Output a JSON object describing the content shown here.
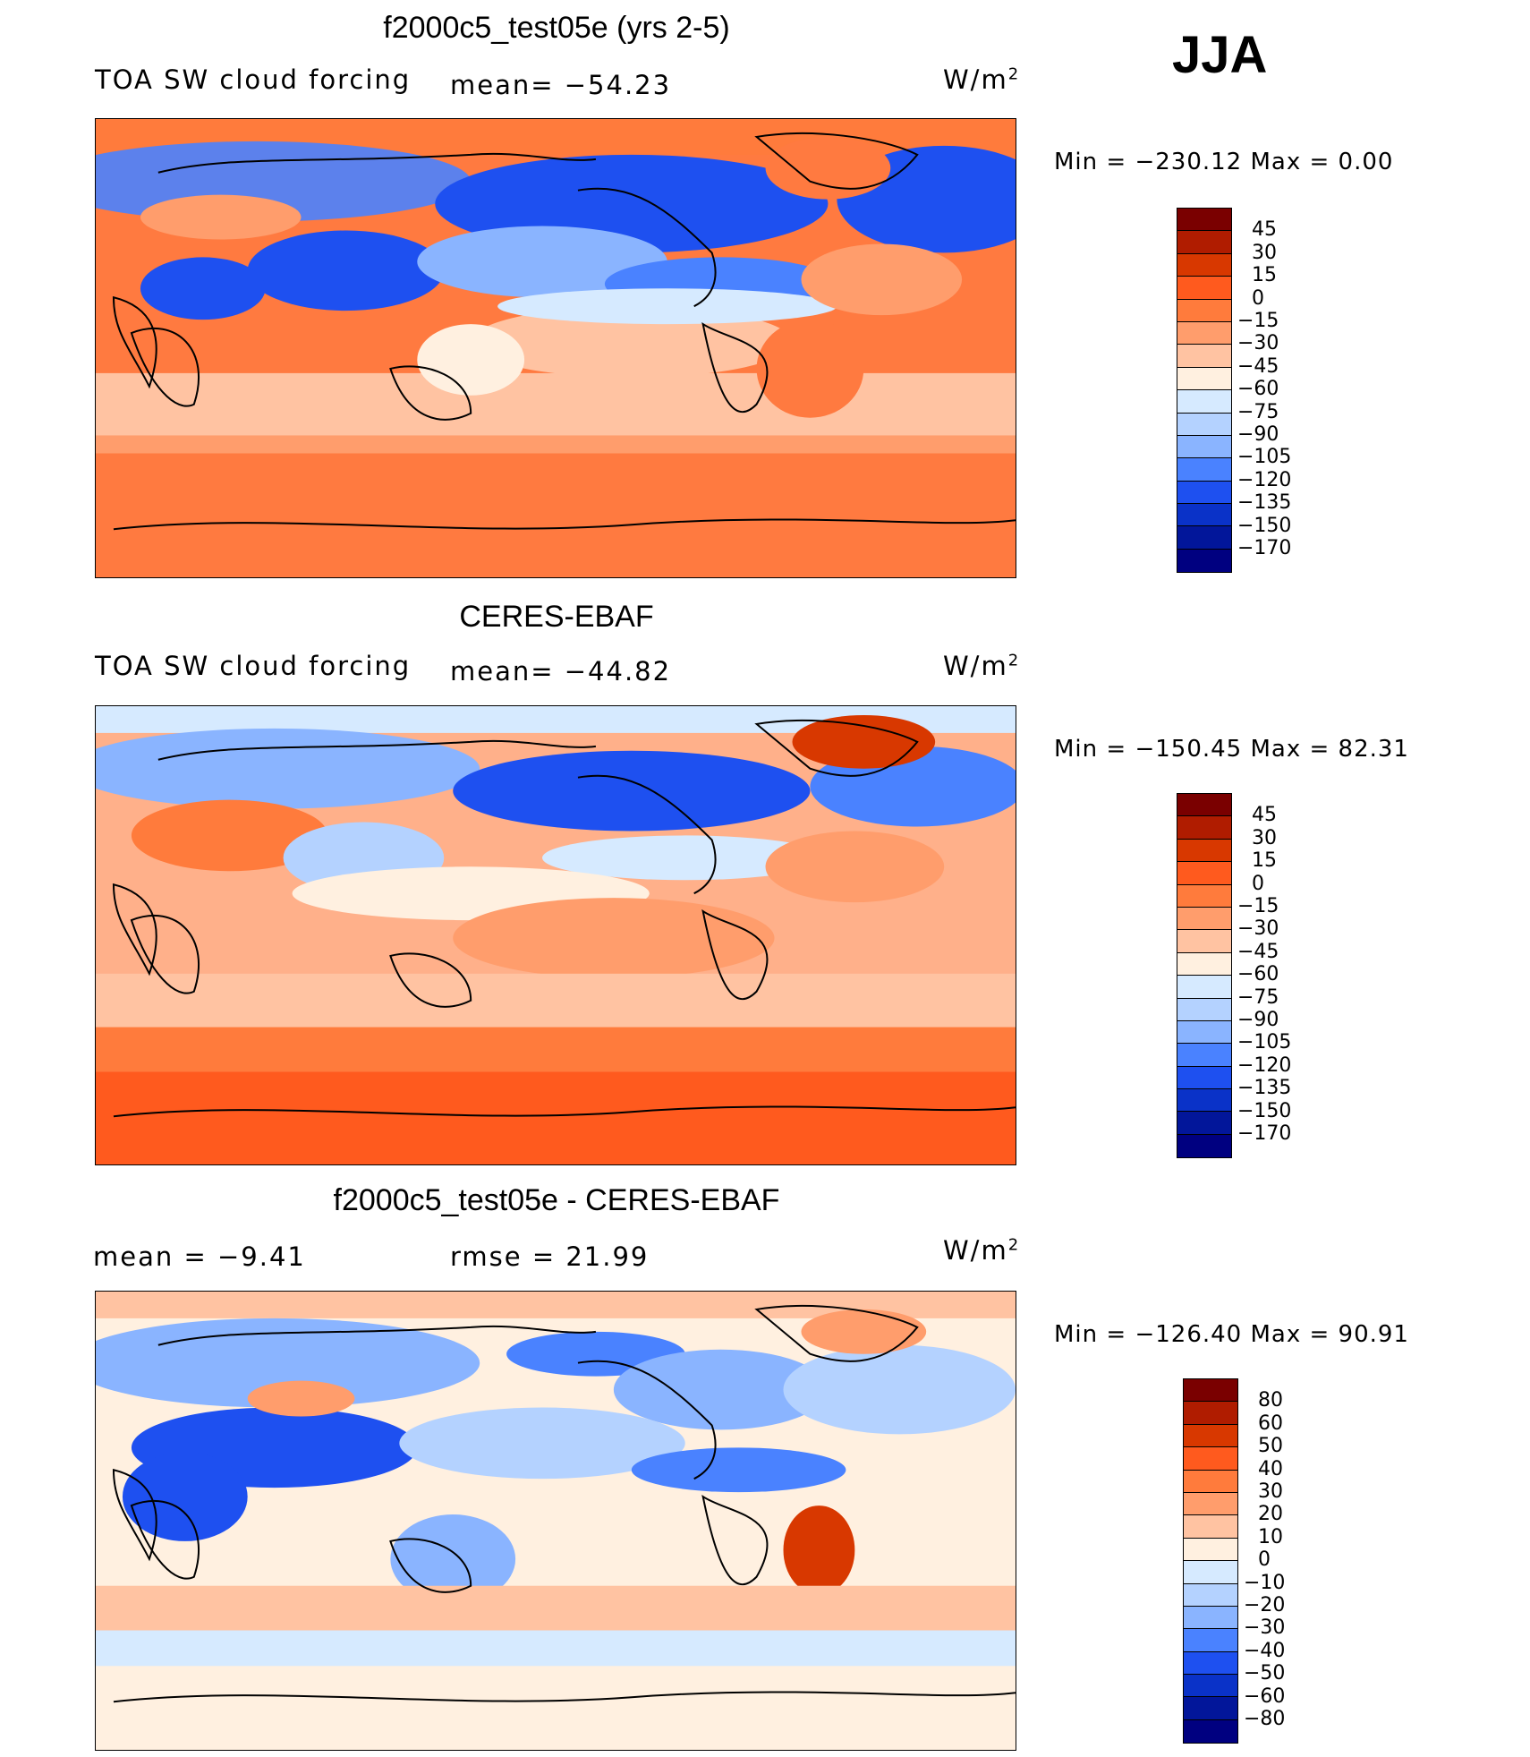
{
  "season": "JJA",
  "panels": [
    {
      "title": "f2000c5_test05e (yrs 2-5)",
      "left_text": "TOA SW cloud forcing",
      "mid_text": "mean= −54.23",
      "units": "W/m",
      "units_sup": "2",
      "min_max": "Min  =  −230.12  Max  =      0.00",
      "colorbar": {
        "labels": [
          "45",
          "30",
          "15",
          "0",
          "−15",
          "−30",
          "−45",
          "−60",
          "−75",
          "−90",
          "−105",
          "−120",
          "−135",
          "−150",
          "−170"
        ],
        "colors": [
          "#7a0000",
          "#b01c00",
          "#d83800",
          "#ff5a1e",
          "#ff7b3c",
          "#ff9d6c",
          "#ffc3a2",
          "#fff0e0",
          "#d6eaff",
          "#b4d2ff",
          "#8ab4ff",
          "#4a82ff",
          "#1e50f0",
          "#0a32c8",
          "#02169a",
          "#000080"
        ]
      },
      "map_fill": "#ff7a40"
    },
    {
      "title": "CERES-EBAF",
      "left_text": "TOA SW cloud forcing",
      "mid_text": "mean= −44.82",
      "units": "W/m",
      "units_sup": "2",
      "min_max": "Min  =  −150.45  Max  =    82.31",
      "colorbar": {
        "labels": [
          "45",
          "30",
          "15",
          "0",
          "−15",
          "−30",
          "−45",
          "−60",
          "−75",
          "−90",
          "−105",
          "−120",
          "−135",
          "−150",
          "−170"
        ],
        "colors": [
          "#7a0000",
          "#b01c00",
          "#d83800",
          "#ff5a1e",
          "#ff7b3c",
          "#ff9d6c",
          "#ffc3a2",
          "#fff0e0",
          "#d6eaff",
          "#b4d2ff",
          "#8ab4ff",
          "#4a82ff",
          "#1e50f0",
          "#0a32c8",
          "#02169a",
          "#000080"
        ]
      },
      "map_fill": "#ffb08a"
    },
    {
      "title": "f2000c5_test05e - CERES-EBAF",
      "left_text": "mean  =    −9.41",
      "mid_text": "rmse  =    21.99",
      "units": "W/m",
      "units_sup": "2",
      "min_max": "Min  =  −126.40  Max  =    90.91",
      "colorbar": {
        "labels": [
          "80",
          "60",
          "50",
          "40",
          "30",
          "20",
          "10",
          "0",
          "−10",
          "−20",
          "−30",
          "−40",
          "−50",
          "−60",
          "−80"
        ],
        "colors": [
          "#7a0000",
          "#b01c00",
          "#d83800",
          "#ff5a1e",
          "#ff7b3c",
          "#ff9d6c",
          "#ffc3a2",
          "#fff0e0",
          "#d6eaff",
          "#b4d2ff",
          "#8ab4ff",
          "#4a82ff",
          "#1e50f0",
          "#0a32c8",
          "#02169a",
          "#000080"
        ]
      },
      "map_fill": "#ffd2bc"
    }
  ]
}
